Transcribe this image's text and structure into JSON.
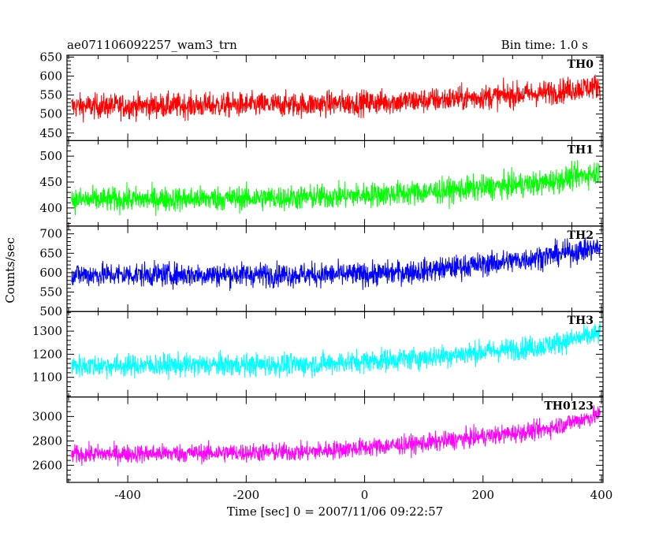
{
  "header": {
    "title": "ae071106092257_wam3_trn",
    "bin_time": "Bin time: 1.0 s"
  },
  "chart_data": {
    "type": "line",
    "title": "ae071106092257_wam3_trn",
    "subtitle": "Bin time: 1.0 s",
    "xlabel": "Time [sec] 0 = 2007/11/06 09:22:57",
    "ylabel": "Counts/sec",
    "xlim": [
      -500,
      400
    ],
    "x_ticks": [
      -400,
      -200,
      0,
      200,
      400
    ],
    "bin_time_s": 1.0,
    "grid": false,
    "panels": [
      {
        "name": "TH0",
        "color": "#ff0000",
        "ylim": [
          430,
          655
        ],
        "y_ticks": [
          450,
          500,
          550,
          600,
          650
        ],
        "trend_x": [
          -500,
          -100,
          100,
          300,
          400
        ],
        "trend_y": [
          520,
          525,
          535,
          555,
          575
        ],
        "noise": 30
      },
      {
        "name": "TH1",
        "color": "#00ff00",
        "ylim": [
          365,
          530
        ],
        "y_ticks": [
          400,
          450,
          500
        ],
        "trend_x": [
          -500,
          -100,
          100,
          300,
          400
        ],
        "trend_y": [
          415,
          420,
          430,
          448,
          470
        ],
        "noise": 22
      },
      {
        "name": "TH2",
        "color": "#0000ff",
        "ylim": [
          500,
          720
        ],
        "y_ticks": [
          500,
          550,
          600,
          650,
          700
        ],
        "trend_x": [
          -500,
          0,
          100,
          250,
          400
        ],
        "trend_y": [
          595,
          595,
          605,
          630,
          665
        ],
        "noise": 28
      },
      {
        "name": "TH3",
        "color": "#00ffff",
        "ylim": [
          1015,
          1385
        ],
        "y_ticks": [
          1100,
          1200,
          1300
        ],
        "trend_x": [
          -500,
          -100,
          100,
          300,
          400
        ],
        "trend_y": [
          1150,
          1155,
          1185,
          1235,
          1290
        ],
        "noise": 45
      },
      {
        "name": "TH0123",
        "color": "#ff00ff",
        "ylim": [
          2460,
          3160
        ],
        "y_ticks": [
          2600,
          2800,
          3000
        ],
        "trend_x": [
          -500,
          -100,
          100,
          300,
          400
        ],
        "trend_y": [
          2690,
          2710,
          2780,
          2890,
          3020
        ],
        "noise": 70
      }
    ]
  }
}
